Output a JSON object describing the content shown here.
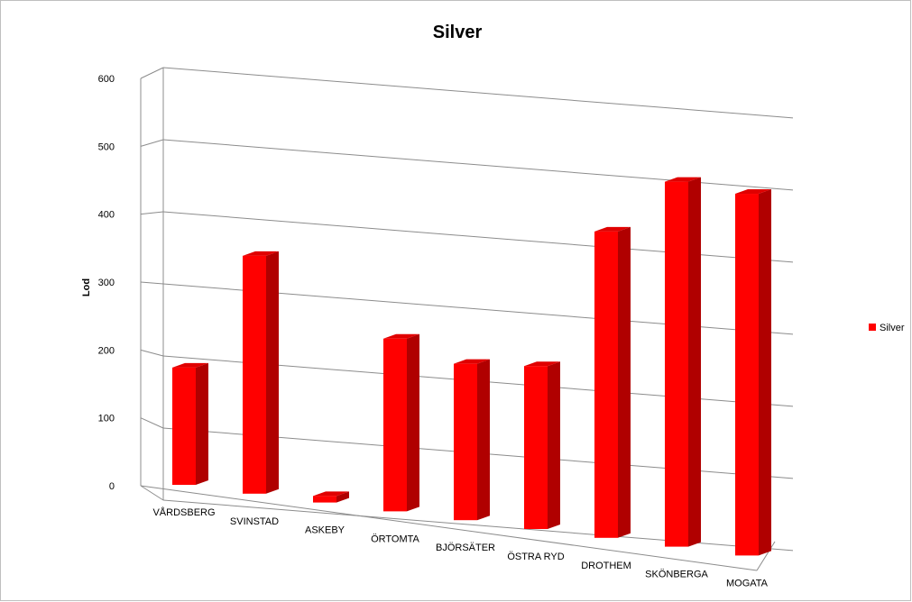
{
  "chart_data": {
    "type": "bar",
    "title": "Silver",
    "xlabel": "",
    "ylabel": "Lod",
    "ylim": [
      0,
      600
    ],
    "yticks": [
      0,
      100,
      200,
      300,
      400,
      500,
      600
    ],
    "grid": true,
    "legend_position": "right",
    "categories": [
      "VÅRDSBERG",
      "SVINSTAD",
      "ASKEBY",
      "ÖRTOMTA",
      "BJÖRSÄTER",
      "ÖSTRA RYD",
      "DROTHEM",
      "SKÖNBERGA",
      "MOGATA"
    ],
    "series": [
      {
        "name": "Silver",
        "color": "#ff0000",
        "values": [
          180,
          365,
          10,
          265,
          240,
          250,
          470,
          560,
          555
        ]
      }
    ]
  }
}
